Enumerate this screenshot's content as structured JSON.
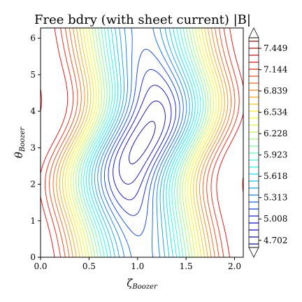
{
  "chart_data": {
    "type": "contour",
    "title": "Free bdry (with sheet current) |B|",
    "xlabel": {
      "main": "ζ",
      "sub": "Boozer"
    },
    "ylabel": {
      "main": "θ",
      "sub": "Boozer"
    },
    "xlim": [
      0.0,
      2.09
    ],
    "ylim": [
      0.0,
      6.28
    ],
    "x_ticks": [
      "0.0",
      "0.5",
      "1.0",
      "1.5",
      "2.0"
    ],
    "x_tick_values": [
      0.0,
      0.5,
      1.0,
      1.5,
      2.0
    ],
    "y_ticks": [
      "0",
      "1",
      "2",
      "3",
      "4",
      "5",
      "6"
    ],
    "y_tick_values": [
      0,
      1,
      2,
      3,
      4,
      5,
      6
    ],
    "colorbar": {
      "min": 4.6,
      "max": 7.6,
      "levels": 30,
      "extend": "both",
      "tick_labels": [
        "4.702",
        "5.008",
        "5.313",
        "5.618",
        "5.923",
        "6.228",
        "6.534",
        "6.839",
        "7.144",
        "7.449"
      ],
      "tick_values": [
        4.702,
        5.008,
        5.313,
        5.618,
        5.923,
        6.228,
        6.534,
        6.839,
        7.144,
        7.449
      ],
      "colormap": "jet"
    },
    "grid": false
  }
}
